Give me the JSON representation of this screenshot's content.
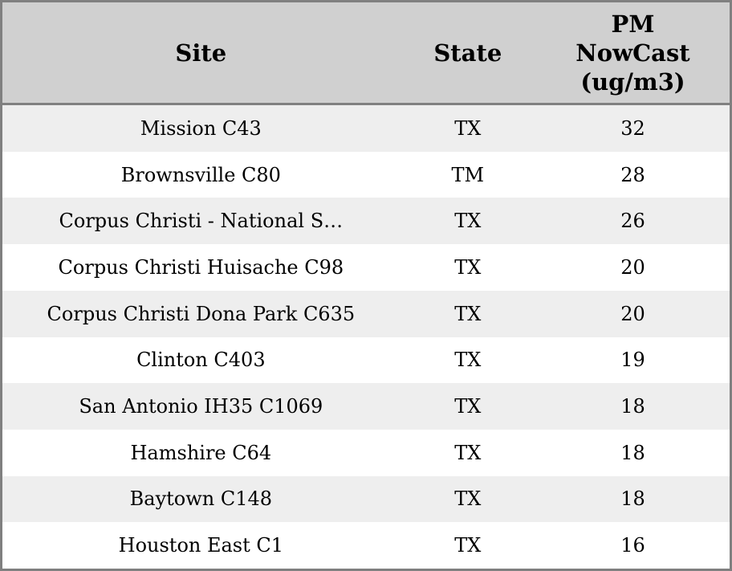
{
  "table": {
    "columns": [
      {
        "id": "site",
        "label": "Site"
      },
      {
        "id": "state",
        "label": "State"
      },
      {
        "id": "value",
        "label": "PM\nNowCast\n(ug/m3)"
      }
    ],
    "rows": [
      {
        "site": "Mission C43",
        "state": "TX",
        "value": "32"
      },
      {
        "site": "Brownsville C80",
        "state": "TM",
        "value": "28"
      },
      {
        "site": "Corpus Christi - National S…",
        "state": "TX",
        "value": "26"
      },
      {
        "site": "Corpus Christi Huisache C98",
        "state": "TX",
        "value": "20"
      },
      {
        "site": "Corpus Christi Dona Park C635",
        "state": "TX",
        "value": "20"
      },
      {
        "site": "Clinton C403",
        "state": "TX",
        "value": "19"
      },
      {
        "site": "San Antonio IH35 C1069",
        "state": "TX",
        "value": "18"
      },
      {
        "site": "Hamshire C64",
        "state": "TX",
        "value": "18"
      },
      {
        "site": "Baytown C148",
        "state": "TX",
        "value": "18"
      },
      {
        "site": "Houston East C1",
        "state": "TX",
        "value": "16"
      }
    ]
  },
  "colors": {
    "border": "#808080",
    "header_bg": "#d0d0d0",
    "row_alt_bg": "#eeeeee",
    "row_bg": "#ffffff",
    "text": "#000000"
  },
  "chart_data": {
    "type": "table",
    "title": "",
    "columns": [
      "Site",
      "State",
      "PM NowCast (ug/m3)"
    ],
    "rows": [
      [
        "Mission C43",
        "TX",
        32
      ],
      [
        "Brownsville C80",
        "TM",
        28
      ],
      [
        "Corpus Christi - National S…",
        "TX",
        26
      ],
      [
        "Corpus Christi Huisache C98",
        "TX",
        20
      ],
      [
        "Corpus Christi Dona Park C635",
        "TX",
        20
      ],
      [
        "Clinton C403",
        "TX",
        19
      ],
      [
        "San Antonio IH35 C1069",
        "TX",
        18
      ],
      [
        "Hamshire C64",
        "TX",
        18
      ],
      [
        "Baytown C148",
        "TX",
        18
      ],
      [
        "Houston East C1",
        "TX",
        16
      ]
    ],
    "layout_hints": {
      "striped": true,
      "first_body_row_shaded": true,
      "all_cells_centered": true,
      "sorted_by": "PM NowCast (ug/m3) descending"
    }
  }
}
